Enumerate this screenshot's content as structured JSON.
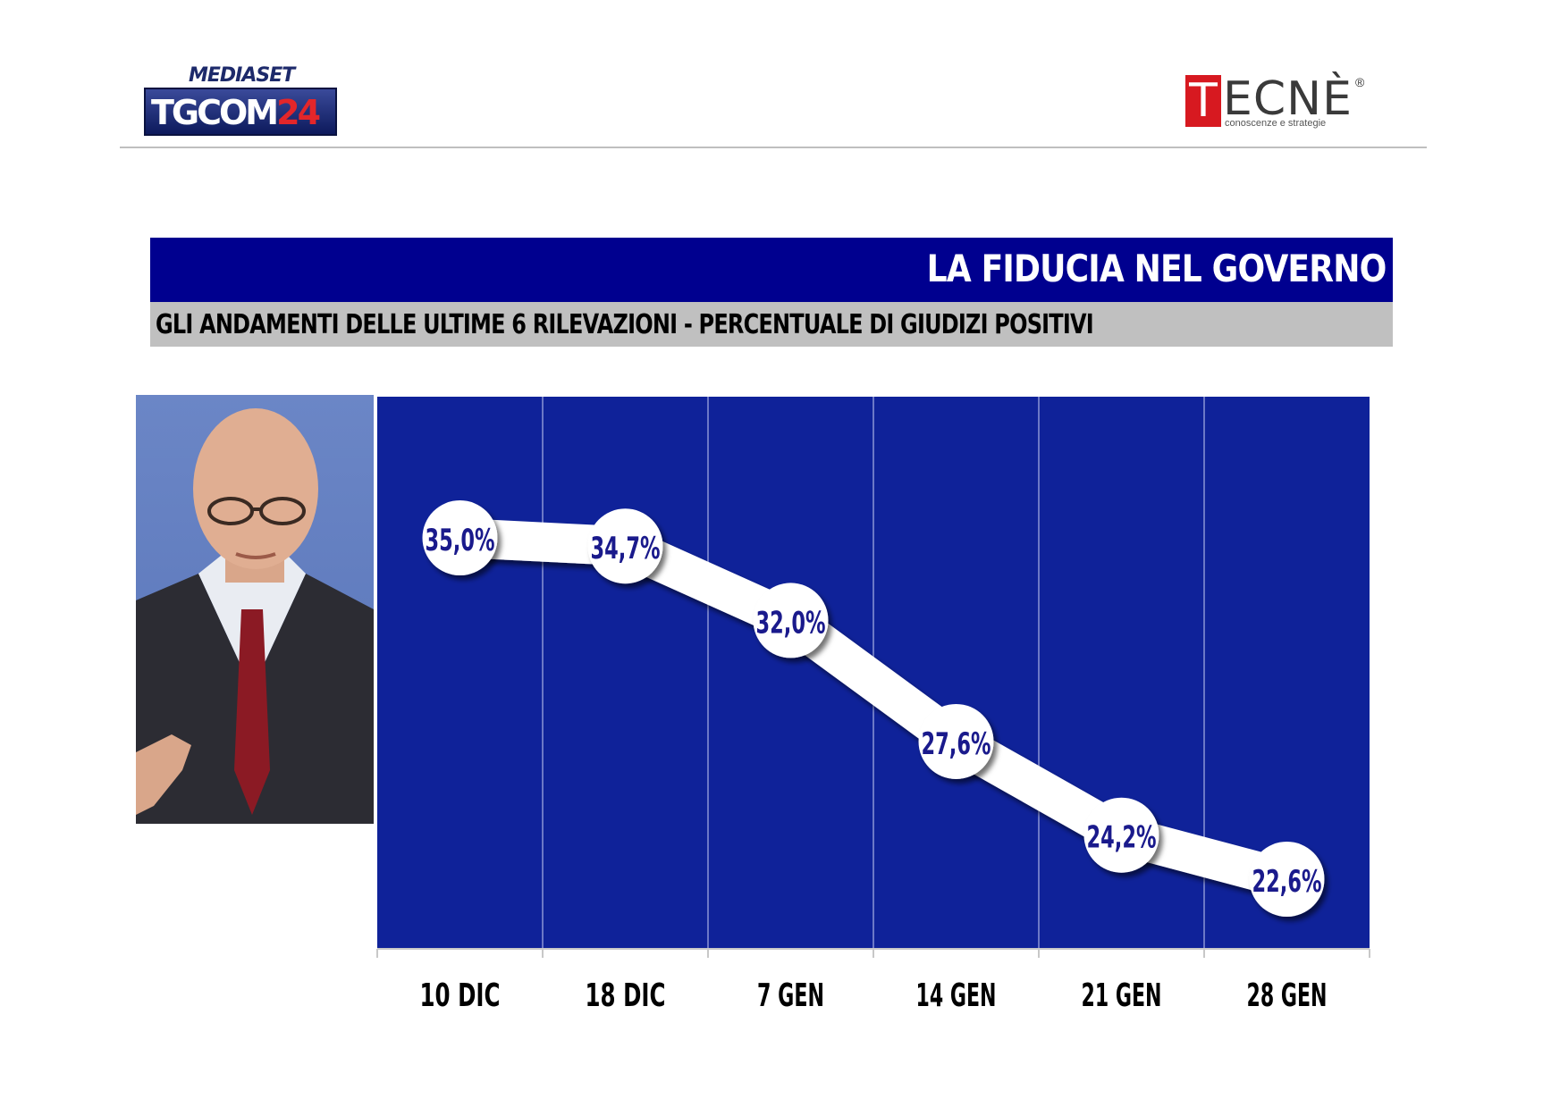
{
  "header": {
    "left_logo": {
      "top_text": "MEDIASET",
      "main_text_white": "TGCOM",
      "main_text_red": "24"
    },
    "right_logo": {
      "letter": "T",
      "rest": "ECNÈ",
      "registered": "®",
      "tagline": "conoscenze e strategie"
    }
  },
  "title": "LA FIDUCIA NEL GOVERNO",
  "subtitle": "GLI ANDAMENTI DELLE ULTIME 6 RILEVAZIONI - PERCENTUALE DI GIUDIZI POSITIVI",
  "colors": {
    "title_bar": "#00008f",
    "subtitle_bar": "#c0c0c0",
    "plot_background": "#0f2299",
    "line": "#ffffff",
    "label_text": "#1a1a8c"
  },
  "chart_data": {
    "type": "line",
    "categories": [
      "10 DIC",
      "18 DIC",
      "7 GEN",
      "14 GEN",
      "21 GEN",
      "28 GEN"
    ],
    "values": [
      35.0,
      34.7,
      32.0,
      27.6,
      24.2,
      22.6
    ],
    "value_labels": [
      "35,0%",
      "34,7%",
      "32,0%",
      "27,6%",
      "24,2%",
      "22,6%"
    ],
    "title": "LA FIDUCIA NEL GOVERNO",
    "xlabel": "",
    "ylabel": "",
    "grid": "vertical",
    "legend": "none"
  }
}
